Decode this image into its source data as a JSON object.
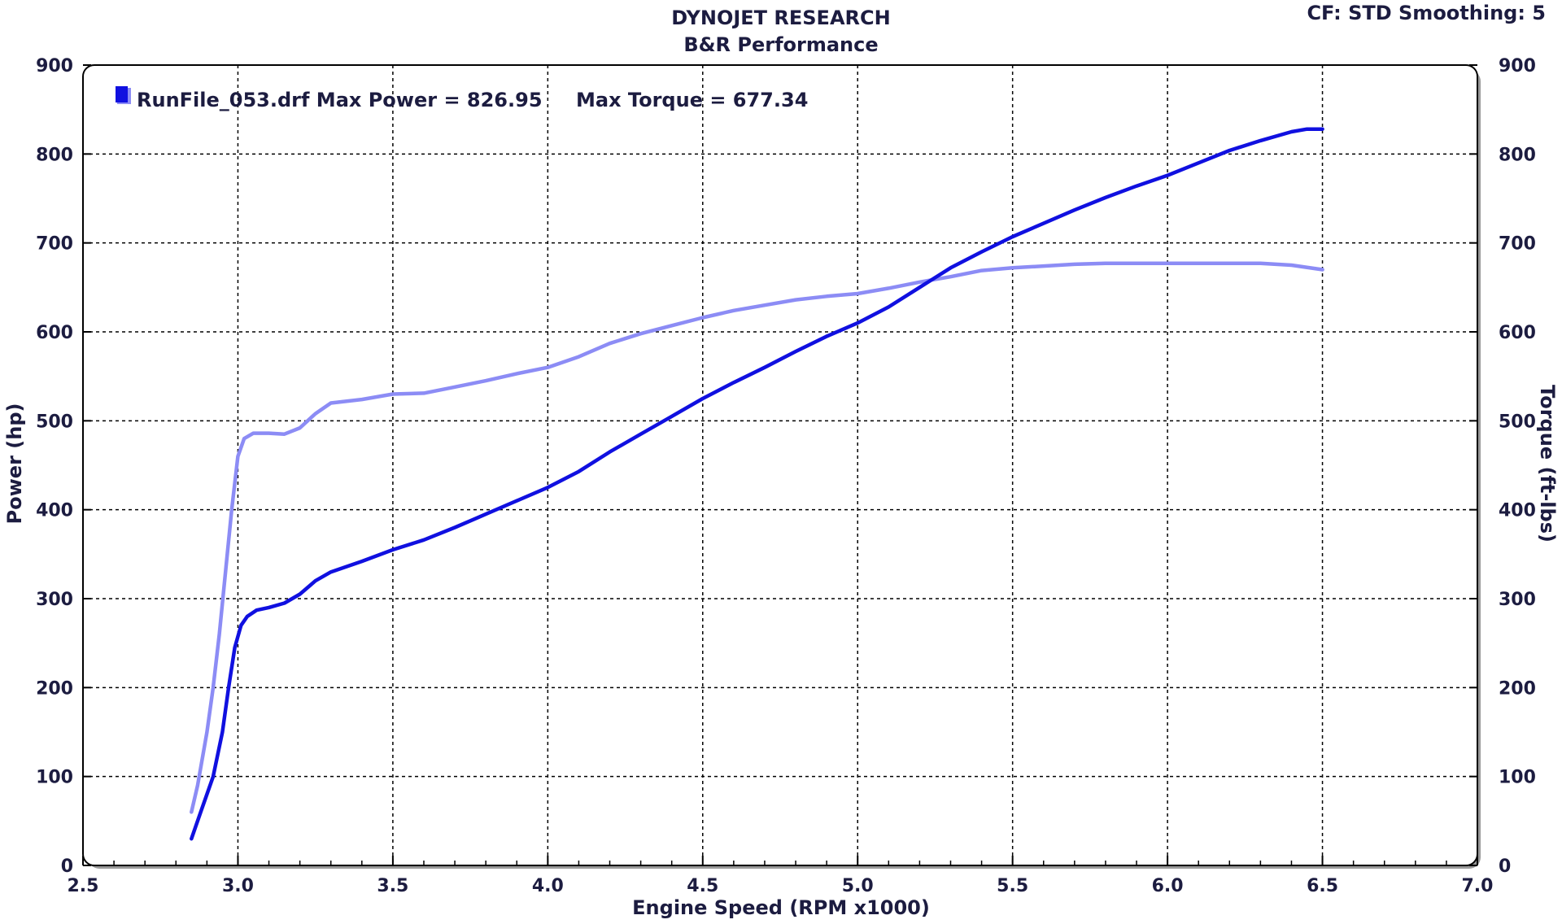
{
  "header": {
    "title_line1": "DYNOJET RESEARCH",
    "title_line2": "B&R Performance",
    "settings": "CF: STD  Smoothing: 5"
  },
  "chart_data": {
    "type": "line",
    "xlabel": "Engine Speed (RPM x1000)",
    "ylabel": "Power (hp)",
    "y2label": "Torque (ft-lbs)",
    "xlim": [
      2.5,
      7.0
    ],
    "ylim": [
      0,
      900
    ],
    "y2lim": [
      0,
      900
    ],
    "x_ticks": [
      "2.5",
      "3.0",
      "3.5",
      "4.0",
      "4.5",
      "5.0",
      "5.5",
      "6.0",
      "6.5",
      "7.0"
    ],
    "y_ticks": [
      "0",
      "100",
      "200",
      "300",
      "400",
      "500",
      "600",
      "700",
      "800",
      "900"
    ],
    "grid": true,
    "legend": {
      "position": "top-left",
      "entry": "RunFile_053.drf Max Power = 826.95",
      "entry2": "Max Torque = 677.34"
    },
    "series": [
      {
        "axis": "left",
        "color": "#1010e0",
        "x": [
          2.85,
          2.88,
          2.92,
          2.95,
          2.97,
          2.99,
          3.01,
          3.03,
          3.06,
          3.1,
          3.15,
          3.2,
          3.25,
          3.3,
          3.4,
          3.5,
          3.6,
          3.7,
          3.8,
          3.9,
          4.0,
          4.1,
          4.2,
          4.3,
          4.4,
          4.5,
          4.6,
          4.7,
          4.8,
          4.9,
          5.0,
          5.1,
          5.2,
          5.3,
          5.4,
          5.5,
          5.6,
          5.7,
          5.8,
          5.9,
          6.0,
          6.1,
          6.2,
          6.3,
          6.4,
          6.45,
          6.5
        ],
        "values": [
          30,
          60,
          100,
          150,
          200,
          245,
          270,
          280,
          287,
          290,
          295,
          305,
          320,
          330,
          342,
          355,
          366,
          380,
          395,
          410,
          425,
          443,
          465,
          485,
          505,
          525,
          543,
          560,
          578,
          595,
          610,
          628,
          650,
          672,
          690,
          707,
          722,
          737,
          751,
          764,
          776,
          790,
          804,
          815,
          825,
          828,
          828
        ]
      },
      {
        "axis": "right",
        "color": "#8c8cf5",
        "x": [
          2.85,
          2.87,
          2.9,
          2.92,
          2.94,
          2.96,
          2.98,
          3.0,
          3.02,
          3.05,
          3.1,
          3.15,
          3.2,
          3.25,
          3.3,
          3.4,
          3.5,
          3.6,
          3.7,
          3.8,
          3.9,
          4.0,
          4.1,
          4.2,
          4.3,
          4.4,
          4.5,
          4.6,
          4.7,
          4.8,
          4.9,
          5.0,
          5.1,
          5.2,
          5.3,
          5.4,
          5.5,
          5.6,
          5.7,
          5.8,
          5.9,
          6.0,
          6.1,
          6.2,
          6.3,
          6.4,
          6.5
        ],
        "values": [
          60,
          90,
          150,
          200,
          260,
          330,
          400,
          460,
          480,
          486,
          486,
          485,
          492,
          508,
          520,
          524,
          530,
          531,
          538,
          545,
          553,
          560,
          572,
          587,
          598,
          607,
          616,
          624,
          630,
          636,
          640,
          643,
          649,
          656,
          662,
          669,
          672,
          674,
          676,
          677,
          677,
          677,
          677,
          677,
          677,
          675,
          670
        ]
      }
    ]
  }
}
